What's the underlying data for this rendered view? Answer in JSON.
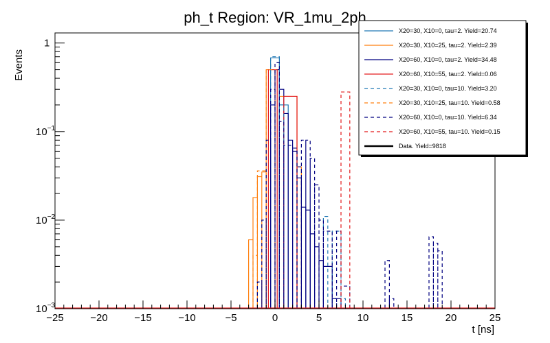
{
  "chart_data": {
    "type": "line",
    "style": "step-histogram",
    "title": "ph_t Region: VR_1mu_2ph",
    "xlabel": "t [ns]",
    "ylabel": "Events",
    "xlim": [
      -25,
      25
    ],
    "ylim": [
      0.001,
      1.3
    ],
    "yscale": "log",
    "x_ticks": [
      {
        "v": -25,
        "label": "−25"
      },
      {
        "v": -20,
        "label": "−20"
      },
      {
        "v": -15,
        "label": "−15"
      },
      {
        "v": -10,
        "label": "−10"
      },
      {
        "v": -5,
        "label": "−5"
      },
      {
        "v": 0,
        "label": "0"
      },
      {
        "v": 5,
        "label": "5"
      },
      {
        "v": 10,
        "label": "10"
      },
      {
        "v": 15,
        "label": "15"
      },
      {
        "v": 20,
        "label": "20"
      },
      {
        "v": 25,
        "label": "25"
      }
    ],
    "y_ticks": [
      {
        "v": 1,
        "base": "1",
        "exp": ""
      },
      {
        "v": 0.1,
        "base": "10",
        "exp": "−1"
      },
      {
        "v": 0.01,
        "base": "10",
        "exp": "−2"
      },
      {
        "v": 0.001,
        "base": "10",
        "exp": "−3"
      }
    ],
    "legend_position": "top-right",
    "series": [
      {
        "name": "X20=30, X10=0, tau=2. Yield=20.74",
        "color": "#1f77b4",
        "dashed": false,
        "bins": [
          [
            -0.5,
            0.5,
            0.68
          ],
          [
            0.5,
            1.5,
            0.2
          ]
        ]
      },
      {
        "name": "X20=30, X10=25, tau=2. Yield=2.39",
        "color": "#ff7f0e",
        "dashed": false,
        "bins": [
          [
            -3.0,
            -2.5,
            0.006
          ],
          [
            -2.5,
            -2.0,
            0.018
          ],
          [
            -2.0,
            -1.5,
            0.031
          ],
          [
            -1.5,
            -1.0,
            0.035
          ],
          [
            -1.0,
            0.5,
            0.5
          ],
          [
            0.5,
            2.5,
            0.25
          ],
          [
            2.5,
            3.0,
            0.04
          ]
        ]
      },
      {
        "name": "X20=60, X10=0, tau=2. Yield=34.48",
        "color": "#000080",
        "dashed": false,
        "bins": [
          [
            -0.5,
            0.0,
            0.2
          ],
          [
            0.0,
            0.5,
            0.5
          ],
          [
            0.5,
            1.0,
            0.3
          ],
          [
            1.0,
            1.5,
            0.16
          ],
          [
            1.5,
            2.0,
            0.08
          ],
          [
            2.0,
            2.5,
            0.06
          ],
          [
            2.5,
            3.0,
            0.03
          ],
          [
            3.0,
            3.5,
            0.014
          ],
          [
            3.5,
            4.0,
            0.013
          ],
          [
            4.0,
            4.5,
            0.007
          ],
          [
            4.5,
            5.0,
            0.005
          ],
          [
            5.0,
            5.5,
            0.0035
          ],
          [
            5.5,
            6.5,
            0.003
          ],
          [
            6.5,
            7.5,
            0.0013
          ]
        ]
      },
      {
        "name": "X20=60, X10=55, tau=2. Yield=0.06",
        "color": "#e31a1c",
        "dashed": false,
        "bins": [
          [
            -0.75,
            0.25,
            0.5
          ],
          [
            1.0,
            2.5,
            0.25
          ]
        ]
      },
      {
        "name": "X20=30, X10=0, tau=10. Yield=3.20",
        "color": "#1f77b4",
        "dashed": true,
        "bins": [
          [
            -0.5,
            0.5,
            0.7
          ],
          [
            0.5,
            1.0,
            0.2
          ],
          [
            5.5,
            6.0,
            0.011
          ],
          [
            6.5,
            7.5,
            0.0075
          ],
          [
            7.5,
            8.0,
            0.0013
          ]
        ]
      },
      {
        "name": "X20=30, X10=25, tau=10. Yield=0.58",
        "color": "#ff7f0e",
        "dashed": true,
        "bins": [
          [
            -2.5,
            -2.0,
            0.004
          ],
          [
            -2.0,
            -1.0,
            0.036
          ],
          [
            -1.0,
            0.0,
            0.5
          ]
        ]
      },
      {
        "name": "X20=60, X10=0, tau=10. Yield=6.34",
        "color": "#000080",
        "dashed": true,
        "bins": [
          [
            -2.0,
            -1.5,
            0.002
          ],
          [
            -1.5,
            -1.0,
            0.01
          ],
          [
            -1.0,
            -0.5,
            0.08
          ],
          [
            -0.5,
            0.0,
            0.3
          ],
          [
            0.0,
            0.5,
            0.6
          ],
          [
            0.5,
            1.0,
            0.13
          ],
          [
            1.0,
            2.0,
            0.07
          ],
          [
            2.0,
            2.5,
            0.065
          ],
          [
            2.5,
            3.0,
            0.04
          ],
          [
            3.0,
            3.5,
            0.08
          ],
          [
            3.5,
            4.0,
            0.08
          ],
          [
            4.0,
            4.5,
            0.05
          ],
          [
            4.5,
            5.0,
            0.025
          ],
          [
            5.0,
            5.5,
            0.01
          ],
          [
            5.5,
            6.5,
            0.0075
          ],
          [
            6.5,
            7.0,
            0.0013
          ],
          [
            7.0,
            7.5,
            0.0075
          ],
          [
            7.5,
            8.5,
            0.0018
          ],
          [
            12.5,
            13.0,
            0.0035
          ],
          [
            13.0,
            13.5,
            0.0013
          ],
          [
            17.5,
            18.0,
            0.0065
          ],
          [
            18.0,
            18.5,
            0.0055
          ],
          [
            18.5,
            19.0,
            0.0045
          ]
        ]
      },
      {
        "name": "X20=60, X10=55, tau=10. Yield=0.15",
        "color": "#e31a1c",
        "dashed": true,
        "bins": [
          [
            7.5,
            8.5,
            0.28
          ]
        ]
      },
      {
        "name": "Data. Yield=9818",
        "color": "#000000",
        "dashed": false,
        "bold": true,
        "bins": []
      }
    ]
  }
}
